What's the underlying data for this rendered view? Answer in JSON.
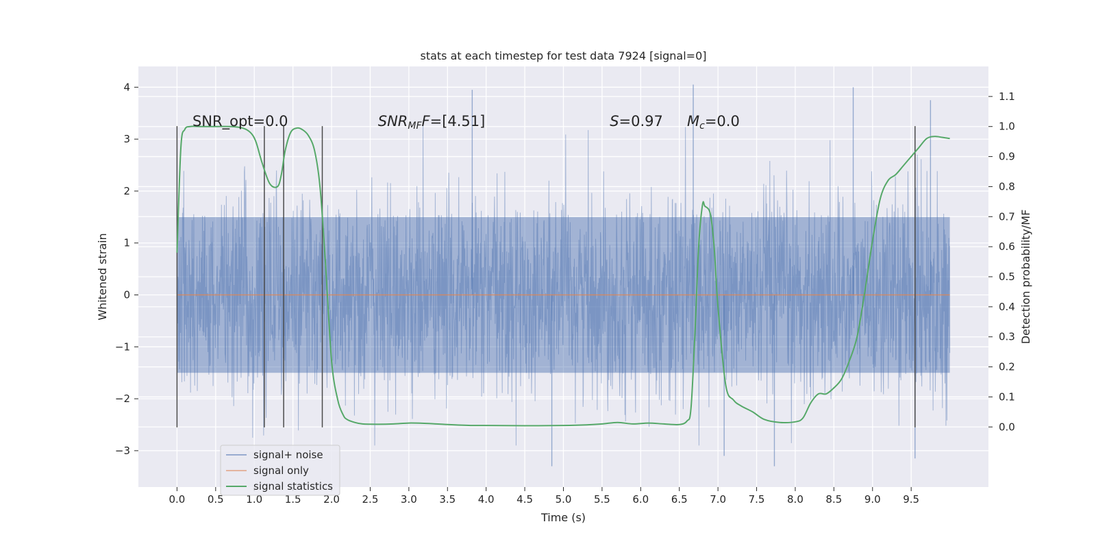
{
  "chart_data": {
    "type": "line",
    "title": "stats at each timestep for test data 7924 [signal=0]",
    "xlabel": "Time (s)",
    "ylabel": "Whitened strain",
    "ylabel_right": "Detection probability/MF",
    "xlim": [
      -0.5,
      10.5
    ],
    "ylim": [
      -3.7,
      4.4
    ],
    "ylim_right": [
      -0.2,
      1.2
    ],
    "grid": true,
    "xticks": [
      0.0,
      0.5,
      1.0,
      1.5,
      2.0,
      2.5,
      3.0,
      3.5,
      4.0,
      4.5,
      5.0,
      5.5,
      6.0,
      6.5,
      7.0,
      7.5,
      8.0,
      8.5,
      9.0,
      9.5
    ],
    "xtick_labels": [
      "0.0",
      "0.5",
      "1.0",
      "1.5",
      "2.0",
      "2.5",
      "3.0",
      "3.5",
      "4.0",
      "4.5",
      "5.0",
      "5.5",
      "6.0",
      "6.5",
      "7.0",
      "7.5",
      "8.0",
      "8.5",
      "9.0",
      "9.5"
    ],
    "yticks": [
      -3,
      -2,
      -1,
      0,
      1,
      2,
      3,
      4
    ],
    "ytick_labels": [
      "−3",
      "−2",
      "−1",
      "0",
      "1",
      "2",
      "3",
      "4"
    ],
    "yticks_right": [
      0.0,
      0.1,
      0.2,
      0.3,
      0.4,
      0.5,
      0.6,
      0.7,
      0.8,
      0.9,
      1.0,
      1.1
    ],
    "ytick_labels_right": [
      "0.0",
      "0.1",
      "0.2",
      "0.3",
      "0.4",
      "0.5",
      "0.6",
      "0.7",
      "0.8",
      "0.9",
      "1.0",
      "1.1"
    ],
    "legend_position": "lower-left",
    "series": [
      {
        "name": "signal+ noise",
        "axis": "left",
        "color": "#4c72b0",
        "style": "dense noise trace, approx. 0 to 10 s",
        "envelope_typical": [
          -1.5,
          1.5
        ],
        "peaks": [
          {
            "x": 3.82,
            "y": 3.95
          },
          {
            "x": 6.68,
            "y": 4.05
          },
          {
            "x": 8.75,
            "y": 4.0
          },
          {
            "x": 9.75,
            "y": 3.75
          },
          {
            "x": 4.85,
            "y": -3.3
          },
          {
            "x": 7.73,
            "y": -3.3
          },
          {
            "x": 9.55,
            "y": -3.15
          },
          {
            "x": 7.08,
            "y": -3.1
          }
        ]
      },
      {
        "name": "signal only",
        "axis": "left",
        "color": "#dd8452",
        "x": [
          0.0,
          10.0
        ],
        "y": [
          0.0,
          0.0
        ]
      },
      {
        "name": "signal statistics",
        "axis": "right",
        "color": "#55a868",
        "x": [
          0.0,
          0.05,
          0.1,
          0.17,
          0.3,
          0.5,
          0.7,
          0.85,
          0.95,
          1.02,
          1.1,
          1.2,
          1.3,
          1.35,
          1.4,
          1.47,
          1.55,
          1.62,
          1.7,
          1.78,
          1.85,
          1.92,
          2.0,
          2.08,
          2.15,
          2.2,
          2.3,
          2.4,
          2.6,
          2.8,
          3.0,
          3.2,
          3.5,
          3.8,
          4.0,
          4.5,
          5.0,
          5.3,
          5.5,
          5.7,
          5.9,
          6.1,
          6.3,
          6.5,
          6.6,
          6.65,
          6.7,
          6.75,
          6.8,
          6.83,
          6.9,
          6.95,
          7.0,
          7.1,
          7.2,
          7.3,
          7.45,
          7.6,
          7.8,
          8.0,
          8.1,
          8.2,
          8.3,
          8.4,
          8.5,
          8.6,
          8.7,
          8.8,
          8.9,
          9.0,
          9.1,
          9.2,
          9.3,
          9.4,
          9.5,
          9.6,
          9.7,
          9.8,
          9.9,
          10.0
        ],
        "y": [
          0.58,
          0.93,
          0.99,
          1.0,
          1.0,
          1.0,
          1.0,
          0.995,
          0.98,
          0.95,
          0.88,
          0.81,
          0.8,
          0.84,
          0.92,
          0.98,
          0.995,
          0.99,
          0.97,
          0.92,
          0.8,
          0.55,
          0.22,
          0.09,
          0.04,
          0.025,
          0.015,
          0.01,
          0.009,
          0.01,
          0.013,
          0.012,
          0.008,
          0.005,
          0.005,
          0.004,
          0.005,
          0.007,
          0.01,
          0.015,
          0.01,
          0.013,
          0.01,
          0.008,
          0.02,
          0.06,
          0.3,
          0.6,
          0.74,
          0.735,
          0.71,
          0.6,
          0.4,
          0.14,
          0.09,
          0.07,
          0.05,
          0.025,
          0.015,
          0.017,
          0.03,
          0.08,
          0.11,
          0.11,
          0.13,
          0.16,
          0.22,
          0.3,
          0.45,
          0.62,
          0.76,
          0.82,
          0.84,
          0.87,
          0.9,
          0.93,
          0.96,
          0.967,
          0.964,
          0.96
        ]
      }
    ],
    "vlines": [
      0.0,
      1.13,
      1.38,
      1.88,
      9.55
    ],
    "vline_range_left_axis": [
      -2.55,
      3.25
    ],
    "annotations": [
      {
        "x": 0.2,
        "y": 3.25,
        "parts": [
          {
            "text": "SNR_opt=0.0",
            "italic": false
          }
        ]
      },
      {
        "x": 2.6,
        "y": 3.25,
        "parts": [
          {
            "text": "SNR",
            "italic": true
          },
          {
            "text": "MF",
            "italic": true,
            "sub": true
          },
          {
            "text": "F",
            "italic": true
          },
          {
            "text": "=[4.51]",
            "italic": false
          }
        ]
      },
      {
        "x": 5.6,
        "y": 3.25,
        "parts": [
          {
            "text": "S",
            "italic": true
          },
          {
            "text": "=0.97",
            "italic": false
          }
        ]
      },
      {
        "x": 6.6,
        "y": 3.25,
        "parts": [
          {
            "text": "M",
            "italic": true
          },
          {
            "text": "c",
            "italic": true,
            "sub": true
          },
          {
            "text": "=0.0",
            "italic": false
          }
        ]
      }
    ]
  },
  "legend": {
    "items": [
      {
        "label": "signal+ noise",
        "color": "#4c72b0"
      },
      {
        "label": "signal only",
        "color": "#dd8452"
      },
      {
        "label": "signal statistics",
        "color": "#55a868"
      }
    ]
  },
  "colors": {
    "plot_bg": "#eaeaf2",
    "grid": "#ffffff",
    "vline": "#4a4a4a"
  }
}
